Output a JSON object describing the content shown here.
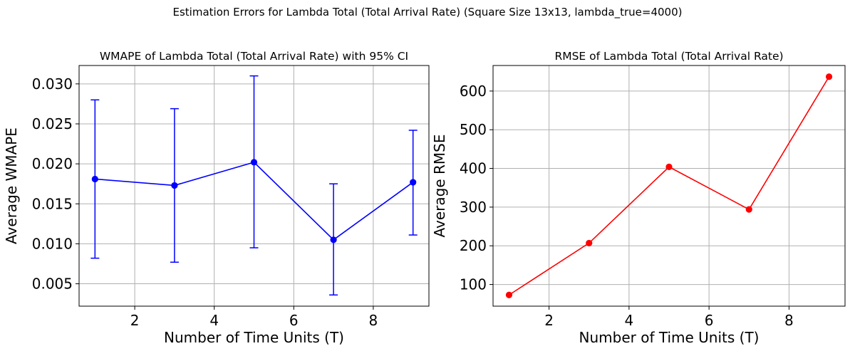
{
  "figure": {
    "title": "Estimation Errors for Lambda Total (Total Arrival Rate) (Square Size 13x13, lambda_true=4000)"
  },
  "chart_data": [
    {
      "type": "line",
      "title": "WMAPE of Lambda Total (Total Arrival Rate) with 95% CI",
      "xlabel": "Number of Time Units (T)",
      "ylabel": "Average WMAPE",
      "grid": true,
      "color": "#0000ff",
      "error_bars": "95% CI",
      "xlim": [
        0.6,
        9.4
      ],
      "ylim": [
        0.0022,
        0.0323
      ],
      "xticks": [
        2,
        4,
        6,
        8
      ],
      "xtick_labels": [
        "2",
        "4",
        "6",
        "8"
      ],
      "yticks": [
        0.005,
        0.01,
        0.015,
        0.02,
        0.025,
        0.03
      ],
      "ytick_labels": [
        "0.005",
        "0.010",
        "0.015",
        "0.020",
        "0.025",
        "0.030"
      ],
      "x": [
        1,
        3,
        5,
        7,
        9
      ],
      "y": [
        0.0181,
        0.0173,
        0.0202,
        0.0105,
        0.0177
      ],
      "ci_lower": [
        0.0082,
        0.0077,
        0.0095,
        0.0036,
        0.0111
      ],
      "ci_upper": [
        0.028,
        0.0269,
        0.031,
        0.0175,
        0.0242
      ]
    },
    {
      "type": "line",
      "title": "RMSE of Lambda Total (Total Arrival Rate)",
      "xlabel": "Number of Time Units (T)",
      "ylabel": "Average RMSE",
      "grid": true,
      "color": "#ff0000",
      "xlim": [
        0.6,
        9.4
      ],
      "ylim": [
        44,
        666
      ],
      "xticks": [
        2,
        4,
        6,
        8
      ],
      "xtick_labels": [
        "2",
        "4",
        "6",
        "8"
      ],
      "yticks": [
        100,
        200,
        300,
        400,
        500,
        600
      ],
      "ytick_labels": [
        "100",
        "200",
        "300",
        "400",
        "500",
        "600"
      ],
      "x": [
        1,
        3,
        5,
        7,
        9
      ],
      "y": [
        73,
        207,
        404,
        294,
        637
      ]
    }
  ]
}
